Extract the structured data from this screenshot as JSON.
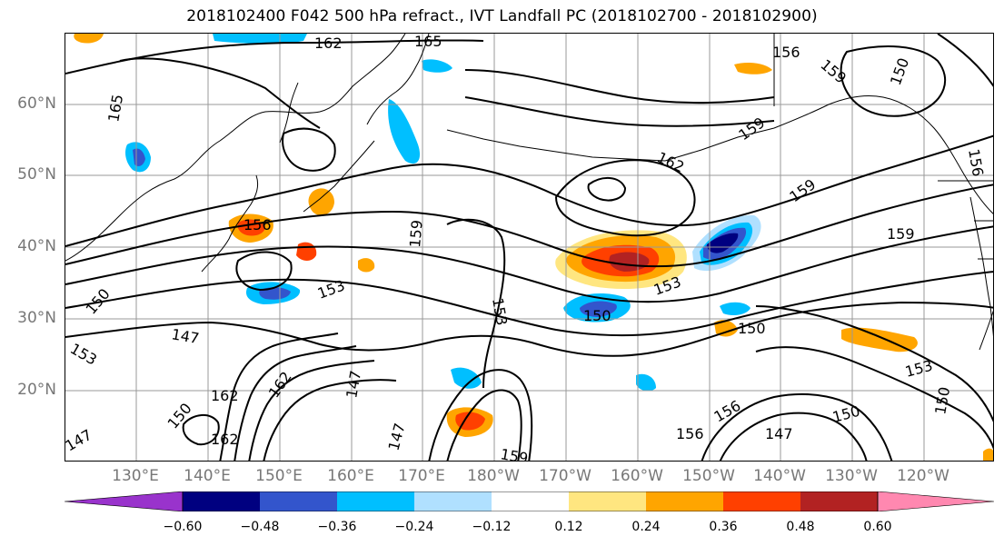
{
  "title": "2018102400 F042 500 hPa refract., IVT Landfall PC (2018102700 - 2018102900)",
  "lat_labels": [
    "60°N",
    "50°N",
    "40°N",
    "30°N",
    "20°N"
  ],
  "lon_labels": [
    "130°E",
    "140°E",
    "150°E",
    "160°E",
    "170°E",
    "180°W",
    "170°W",
    "160°W",
    "150°W",
    "140°W",
    "130°W",
    "120°W"
  ],
  "contour_labels": [
    "162",
    "165",
    "156",
    "159",
    "150",
    "165",
    "159",
    "162",
    "156",
    "159",
    "159",
    "156",
    "159",
    "153",
    "150",
    "153",
    "150",
    "153",
    "147",
    "153",
    "147",
    "162",
    "150",
    "162",
    "147",
    "156",
    "156",
    "147",
    "150",
    "153",
    "150",
    "159",
    "162",
    "150",
    "147"
  ],
  "colorbar": {
    "colors": [
      "#9933cc",
      "#000080",
      "#3355cc",
      "#00bfff",
      "#b0e0ff",
      "#ffffff",
      "#ffe680",
      "#ffa500",
      "#ff4000",
      "#b22222",
      "#ff88b0"
    ],
    "tick_labels": [
      "−0.60",
      "−0.48",
      "−0.36",
      "−0.24",
      "−0.12",
      "0.12",
      "0.24",
      "0.36",
      "0.48",
      "0.60"
    ]
  },
  "fill_colors": {
    "neg_light": "#b0e0ff",
    "neg_mid": "#00bfff",
    "neg_dark": "#3355cc",
    "neg_deep": "#000080",
    "pos_light": "#ffe680",
    "pos_mid": "#ffa500",
    "pos_dark": "#ff4000",
    "pos_deep": "#b22222"
  }
}
